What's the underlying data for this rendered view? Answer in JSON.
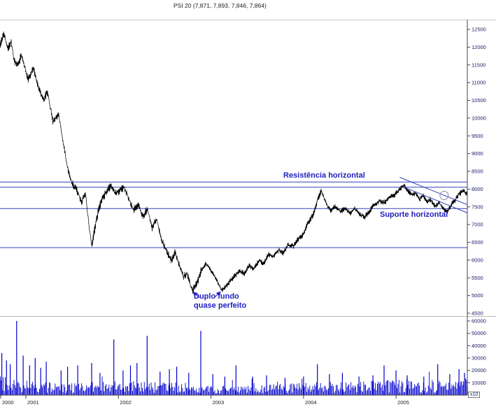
{
  "title": "PSI 20 (7,871, 7,893, 7,846, 7,864)",
  "annotations": {
    "resistance": "Resistência horizontal",
    "support": "Suporte horizontal",
    "double_bottom_line1": "Duplo fundo",
    "double_bottom_line2": "quase perfeito",
    "volume_unit": "x10"
  },
  "colors": {
    "price_line": "#000000",
    "volume_bar": "#0000cc",
    "trend_line": "#3340bb",
    "annotation_text": "#2020c0",
    "axis_text": "#1a1a66",
    "year_text": "#222222",
    "axis_line": "#444444"
  },
  "chart_data": [
    {
      "type": "line",
      "name": "PSI 20 price",
      "x_unit": "decimal_year",
      "x_range": [
        2000.72,
        2005.77
      ],
      "y_range": [
        4500,
        12500
      ],
      "y_ticks": [
        12500,
        12000,
        11500,
        11000,
        10500,
        10000,
        9500,
        9000,
        8500,
        8000,
        7500,
        7000,
        6500,
        6000,
        5500,
        5000,
        4500
      ],
      "x_ticks": [
        2000,
        2001,
        2002,
        2003,
        2004,
        2005
      ],
      "ohlc_last": {
        "open": 7871,
        "high": 7893,
        "low": 7846,
        "close": 7864
      },
      "horizontal_lines": [
        8200,
        8050,
        7450,
        6350
      ],
      "channel": {
        "upper": [
          [
            2005.04,
            8330
          ],
          [
            2005.77,
            7560
          ]
        ],
        "lower": [
          [
            2005.08,
            8060
          ],
          [
            2005.77,
            7330
          ]
        ],
        "circle_at": [
          2005.52,
          7820
        ]
      },
      "double_bottom_points": [
        [
          2002.8,
          5155
        ],
        [
          2003.11,
          5160
        ]
      ],
      "anchors": {
        "t": [
          2000.72,
          2000.76,
          2000.8,
          2000.84,
          2000.87,
          2000.92,
          2000.95,
          2001.02,
          2001.08,
          2001.14,
          2001.19,
          2001.23,
          2001.29,
          2001.35,
          2001.4,
          2001.45,
          2001.5,
          2001.55,
          2001.6,
          2001.64,
          2001.68,
          2001.71,
          2001.76,
          2001.81,
          2001.87,
          2001.92,
          2001.96,
          2002.01,
          2002.06,
          2002.11,
          2002.16,
          2002.22,
          2002.26,
          2002.31,
          2002.36,
          2002.41,
          2002.47,
          2002.52,
          2002.57,
          2002.61,
          2002.66,
          2002.7,
          2002.74,
          2002.78,
          2002.8,
          2002.85,
          2002.89,
          2002.94,
          2002.99,
          2003.03,
          2003.08,
          2003.11,
          2003.15,
          2003.2,
          2003.25,
          2003.31,
          2003.36,
          2003.41,
          2003.46,
          2003.52,
          2003.57,
          2003.62,
          2003.67,
          2003.73,
          2003.78,
          2003.83,
          2003.89,
          2003.94,
          2003.99,
          2004.05,
          2004.1,
          2004.15,
          2004.19,
          2004.24,
          2004.29,
          2004.34,
          2004.4,
          2004.45,
          2004.5,
          2004.55,
          2004.61,
          2004.66,
          2004.71,
          2004.76,
          2004.82,
          2004.87,
          2004.92,
          2004.97,
          2005.03,
          2005.08,
          2005.12,
          2005.17,
          2005.21,
          2005.25,
          2005.29,
          2005.33,
          2005.37,
          2005.42,
          2005.46,
          2005.51,
          2005.55,
          2005.6,
          2005.64,
          2005.68,
          2005.72,
          2005.77
        ],
        "price": [
          12050,
          12400,
          11950,
          12150,
          11600,
          11500,
          11800,
          11100,
          11400,
          10800,
          10500,
          10750,
          9900,
          10100,
          9350,
          8550,
          8150,
          7950,
          7650,
          7900,
          6950,
          6400,
          7150,
          7650,
          7950,
          8120,
          7870,
          7960,
          8060,
          7720,
          7400,
          7580,
          7200,
          7460,
          6920,
          7160,
          6520,
          6240,
          6000,
          6200,
          5820,
          5520,
          5640,
          5260,
          5155,
          5380,
          5680,
          5900,
          5740,
          5590,
          5320,
          5160,
          5230,
          5400,
          5540,
          5700,
          5610,
          5850,
          5750,
          5990,
          5890,
          6160,
          6090,
          6290,
          6190,
          6430,
          6390,
          6590,
          6690,
          7060,
          7260,
          7700,
          7950,
          7610,
          7390,
          7510,
          7360,
          7470,
          7310,
          7450,
          7290,
          7220,
          7370,
          7560,
          7660,
          7610,
          7760,
          7810,
          7960,
          8110,
          7960,
          7830,
          7900,
          7710,
          7820,
          7630,
          7710,
          7510,
          7630,
          7430,
          7360,
          7570,
          7710,
          7870,
          7940,
          7864
        ]
      }
    },
    {
      "type": "bar",
      "name": "Volume",
      "y_range": [
        0,
        60000
      ],
      "y_ticks": [
        60000,
        50000,
        40000,
        30000,
        20000,
        10000
      ],
      "unit_label": "x10",
      "envelope": [
        [
          2000.72,
          13000
        ],
        [
          2000.95,
          11000
        ],
        [
          2001.2,
          9500
        ],
        [
          2001.5,
          8000
        ],
        [
          2001.75,
          9000
        ],
        [
          2002.0,
          9500
        ],
        [
          2002.4,
          8500
        ],
        [
          2002.8,
          8000
        ],
        [
          2003.0,
          6000
        ],
        [
          2003.5,
          6500
        ],
        [
          2004.0,
          8000
        ],
        [
          2004.5,
          9000
        ],
        [
          2005.0,
          10000
        ],
        [
          2005.4,
          9000
        ],
        [
          2005.77,
          11000
        ]
      ],
      "spikes": [
        [
          2000.74,
          34000
        ],
        [
          2000.79,
          28000
        ],
        [
          2000.83,
          25000
        ],
        [
          2000.9,
          60000
        ],
        [
          2000.97,
          32000
        ],
        [
          2001.04,
          24000
        ],
        [
          2001.1,
          30000
        ],
        [
          2001.16,
          22000
        ],
        [
          2001.22,
          27000
        ],
        [
          2001.38,
          20000
        ],
        [
          2001.45,
          23000
        ],
        [
          2001.56,
          24000
        ],
        [
          2001.71,
          26000
        ],
        [
          2001.8,
          18000
        ],
        [
          2001.95,
          45000
        ],
        [
          2002.05,
          20000
        ],
        [
          2002.13,
          24000
        ],
        [
          2002.2,
          26000
        ],
        [
          2002.31,
          48000
        ],
        [
          2002.45,
          19000
        ],
        [
          2002.55,
          21000
        ],
        [
          2002.63,
          23000
        ],
        [
          2002.76,
          18000
        ],
        [
          2002.89,
          52000
        ],
        [
          2003.02,
          17000
        ],
        [
          2003.15,
          15000
        ],
        [
          2003.27,
          24000
        ],
        [
          2003.45,
          15000
        ],
        [
          2003.6,
          16000
        ],
        [
          2003.8,
          14000
        ],
        [
          2004.0,
          15000
        ],
        [
          2004.15,
          25000
        ],
        [
          2004.28,
          17000
        ],
        [
          2004.42,
          18000
        ],
        [
          2004.6,
          15000
        ],
        [
          2004.75,
          16000
        ],
        [
          2004.87,
          24000
        ],
        [
          2005.0,
          20000
        ],
        [
          2005.12,
          16000
        ],
        [
          2005.3,
          15000
        ],
        [
          2005.45,
          25000
        ],
        [
          2005.58,
          17000
        ],
        [
          2005.68,
          21000
        ],
        [
          2005.74,
          18000
        ]
      ]
    }
  ]
}
